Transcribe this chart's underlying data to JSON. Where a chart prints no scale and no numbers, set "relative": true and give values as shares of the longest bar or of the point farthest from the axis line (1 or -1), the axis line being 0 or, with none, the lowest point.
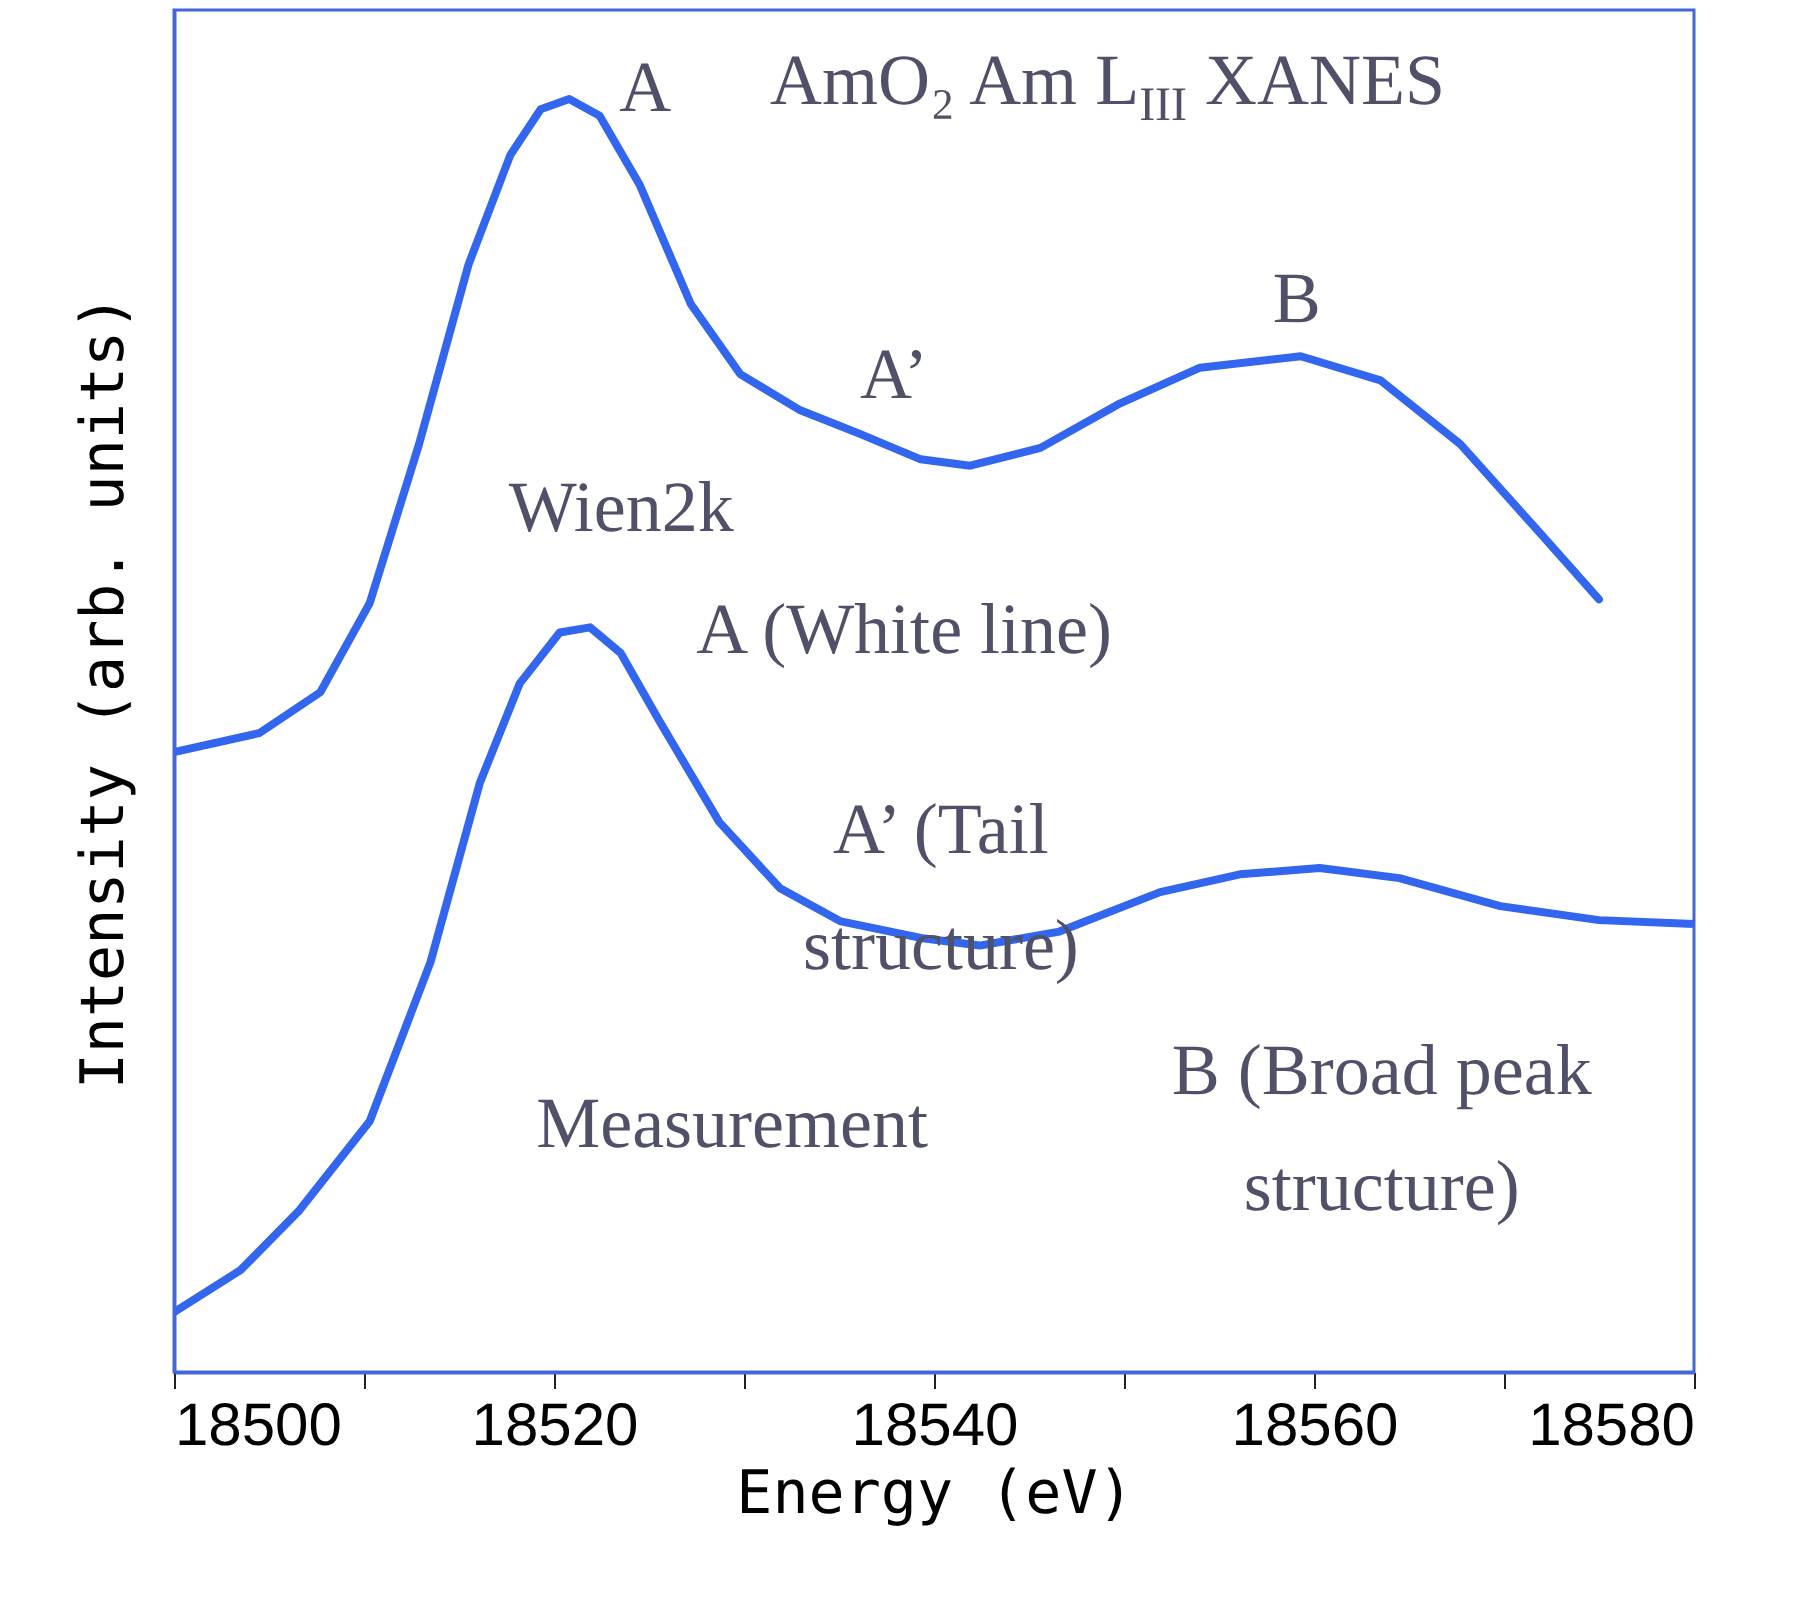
{
  "chart_data": {
    "type": "line",
    "title": "AmO₂ Am L$_{III}$ XANES",
    "xlabel": "Energy (eV)",
    "ylabel": "Intensity (arb. units)",
    "relative": true,
    "xlim": [
      18500,
      18580
    ],
    "xticks": [
      18500,
      {
        "value": 18510,
        "label": null
      },
      18520,
      {
        "value": 18530,
        "label": null
      },
      18540,
      {
        "value": 18550,
        "label": null
      },
      18560,
      {
        "value": 18570,
        "label": null
      },
      18580
    ],
    "series": [
      {
        "name": "Wien2k",
        "color": "#3366ee",
        "x": [
          18500,
          18504.5,
          18507.7,
          18510.3,
          18512.9,
          18515.5,
          18517.7,
          18519.3,
          18520.8,
          18522.4,
          18524.5,
          18527.2,
          18529.8,
          18532.9,
          18536.1,
          18539.3,
          18541.9,
          18545.6,
          18549.8,
          18554,
          18559.3,
          18563.5,
          18567.7,
          18571.9,
          18575
        ],
        "values": [
          0.487,
          0.502,
          0.534,
          0.604,
          0.729,
          0.87,
          0.956,
          0.992,
          1.0,
          0.987,
          0.933,
          0.839,
          0.784,
          0.756,
          0.737,
          0.717,
          0.712,
          0.726,
          0.761,
          0.789,
          0.798,
          0.779,
          0.729,
          0.659,
          0.607
        ]
      },
      {
        "name": "Measurement",
        "color": "#3366ee",
        "x": [
          18500,
          18503.5,
          18506.6,
          18510.3,
          18513.5,
          18516.1,
          18518.2,
          18520.3,
          18521.9,
          18523.5,
          18525.6,
          18528.7,
          18531.9,
          18535.1,
          18539.3,
          18542.4,
          18546.6,
          18551.9,
          18556.1,
          18560.3,
          18564.5,
          18569.8,
          18575,
          18580
        ],
        "values": [
          0.047,
          0.08,
          0.127,
          0.197,
          0.322,
          0.463,
          0.541,
          0.581,
          0.585,
          0.565,
          0.51,
          0.432,
          0.38,
          0.354,
          0.341,
          0.335,
          0.346,
          0.377,
          0.391,
          0.396,
          0.388,
          0.366,
          0.355,
          0.352
        ]
      }
    ],
    "annotations": [
      {
        "text": "A",
        "x": 18520.8,
        "y": 1.0
      },
      {
        "text": "A’",
        "x": 18536.1,
        "y": 0.737
      },
      {
        "text": "B",
        "x": 18559.3,
        "y": 0.798
      },
      {
        "text": "A (White line)",
        "x": 18521.9,
        "y": 0.585
      },
      {
        "text": "A’ (Tail\nstructure)",
        "x": 18535.1,
        "y": 0.354
      },
      {
        "text": "B (Broad peak\nstructure)",
        "x": 18560.3,
        "y": 0.396
      }
    ],
    "line_style": "solid"
  }
}
